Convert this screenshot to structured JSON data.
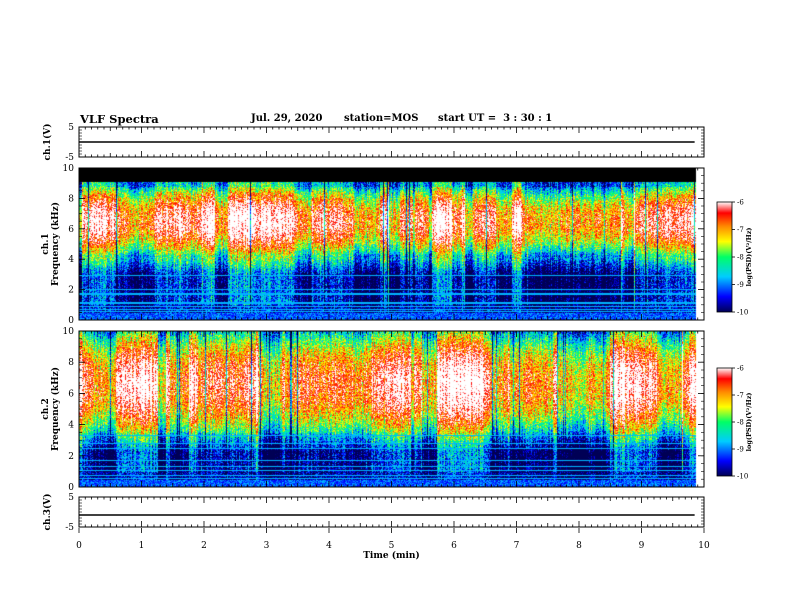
{
  "header": {
    "title": "VLF Spectra",
    "date": "Jul. 29, 2020",
    "station": "station=MOS",
    "start_ut": "start UT =  3 : 30 : 1"
  },
  "colors": {
    "colormap": [
      "#000055",
      "#0000ff",
      "#00ccff",
      "#00ff66",
      "#ffff00",
      "#ff8800",
      "#ff0000",
      "#ffffff"
    ],
    "axis": "#000000",
    "background": "#ffffff"
  },
  "chart_data": [
    {
      "type": "line",
      "name": "ch1-waveform",
      "ylabel": "ch.1(V)",
      "ylim": [
        -5,
        5
      ],
      "yticks": [
        "5",
        "-5"
      ],
      "x": [
        0,
        9.85
      ],
      "y": [
        0,
        0
      ],
      "xlim": [
        0,
        10
      ]
    },
    {
      "type": "heatmap",
      "name": "ch1-spectrogram",
      "ylabel": "ch.1 Frequency (kHz)",
      "ylim": [
        0,
        10
      ],
      "yticks": [
        "0",
        "2",
        "4",
        "6",
        "8",
        "10"
      ],
      "xlim": [
        0,
        10
      ],
      "data_end_min": 9.85,
      "band_low_khz": 4.2,
      "band_high_khz": 8.8,
      "peak_khz": 6.5,
      "colorbar": {
        "label": "log(PSD)(V²/Hz)",
        "range": [
          -10,
          -6
        ],
        "ticks": [
          "-6",
          "-7",
          "-8",
          "-9",
          "-10"
        ]
      }
    },
    {
      "type": "heatmap",
      "name": "ch2-spectrogram",
      "ylabel": "ch.2 Frequency (kHz)",
      "ylim": [
        0,
        10
      ],
      "yticks": [
        "0",
        "2",
        "4",
        "6",
        "8",
        "10"
      ],
      "xlim": [
        0,
        10
      ],
      "data_end_min": 9.85,
      "band_low_khz": 3.5,
      "band_high_khz": 10,
      "peak_khz": 6.6,
      "colorbar": {
        "label": "log(PSD)(V²/Hz)",
        "range": [
          -10,
          -6
        ],
        "ticks": [
          "-6",
          "-7",
          "-8",
          "-9",
          "-10"
        ]
      }
    },
    {
      "type": "line",
      "name": "ch3-waveform",
      "ylabel": "ch.3(V)",
      "ylim": [
        -5,
        5
      ],
      "yticks": [
        "5",
        "-5"
      ],
      "x": [
        0,
        9.85
      ],
      "y": [
        -1,
        -1
      ],
      "xlim": [
        0,
        10
      ]
    }
  ],
  "xaxis": {
    "label": "Time (min)",
    "ticks": [
      "0",
      "1",
      "2",
      "3",
      "4",
      "5",
      "6",
      "7",
      "8",
      "9",
      "10"
    ]
  }
}
